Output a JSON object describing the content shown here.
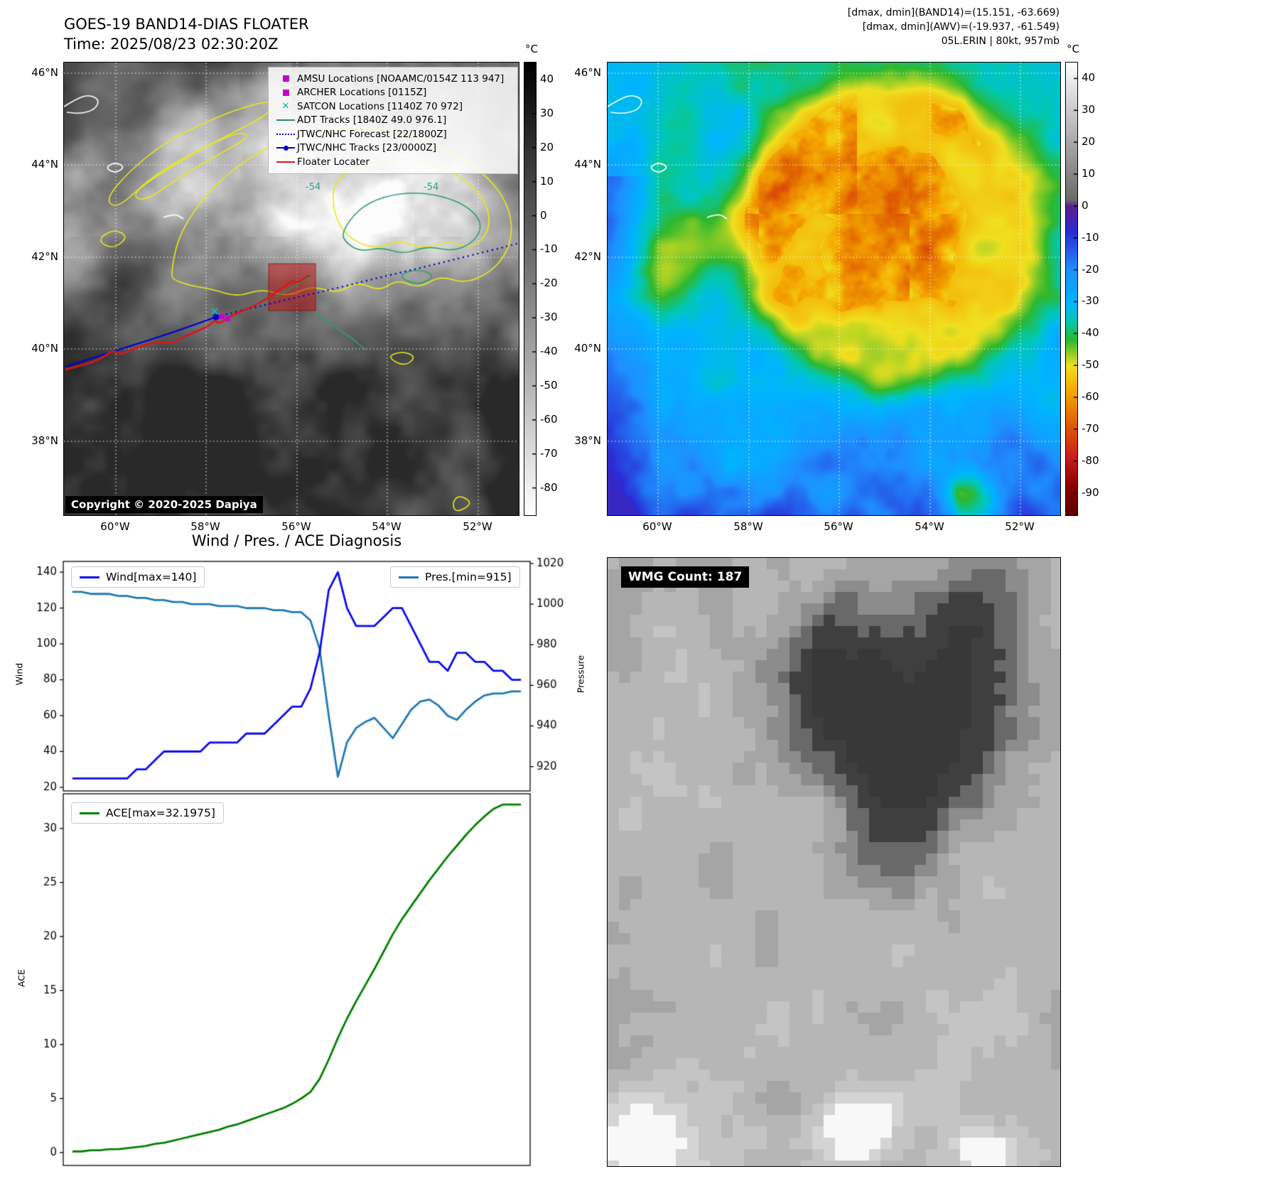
{
  "panel1": {
    "title": "GOES-19 BAND14-DIAS FLOATER",
    "time": "Time: 2025/08/23 02:30:20Z",
    "copyright": "Copyright © 2020-2025 Dapiya",
    "colorbar_unit": "°C",
    "colorbar_ticks": [
      40,
      30,
      20,
      10,
      0,
      -10,
      -20,
      -30,
      -40,
      -50,
      -60,
      -70,
      -80
    ],
    "lat_ticks": [
      "46°N",
      "44°N",
      "42°N",
      "40°N",
      "38°N"
    ],
    "lon_ticks": [
      "60°W",
      "58°W",
      "56°W",
      "54°W",
      "52°W"
    ],
    "contour_labels": [
      "-54",
      "-54"
    ],
    "legend_items": [
      {
        "label": "AMSU Locations [NOAAMC/0154Z 113 947]",
        "marker": "square",
        "color": "#c800c8"
      },
      {
        "label": "ARCHER Locations [0115Z]",
        "marker": "square",
        "color": "#c800c8"
      },
      {
        "label": "SATCON Locations [1140Z 70 972]",
        "marker": "x",
        "color": "#20b2aa"
      },
      {
        "label": "ADT Tracks [1840Z 49.0 976.1]",
        "marker": "line",
        "color": "#2e8b57"
      },
      {
        "label": "JTWC/NHC Forecast [22/1800Z]",
        "marker": "dotted",
        "color": "#0000cd"
      },
      {
        "label": "JTWC/NHC Tracks [23/0000Z]",
        "marker": "line-dot",
        "color": "#0000cd"
      },
      {
        "label": "Floater Locater",
        "marker": "line",
        "color": "#e01515"
      }
    ]
  },
  "panel2": {
    "header_lines": [
      "[dmax, dmin](BAND14)=(15.151, -63.669)",
      "[dmax, dmin](AWV)=(-19.937, -61.549)",
      "05L.ERIN | 80kt, 957mb"
    ],
    "colorbar_unit": "°C",
    "colorbar_ticks": [
      40,
      30,
      20,
      10,
      0,
      -10,
      -20,
      -30,
      -40,
      -50,
      -60,
      -70,
      -80,
      -90
    ],
    "lat_ticks": [
      "46°N",
      "44°N",
      "42°N",
      "40°N",
      "38°N"
    ],
    "lon_ticks": [
      "60°W",
      "58°W",
      "56°W",
      "54°W",
      "52°W"
    ]
  },
  "panel3": {
    "title": "Wind / Pres. / ACE Diagnosis",
    "legend_wind": "Wind[max=140]",
    "legend_pres": "Pres.[min=915]",
    "legend_ace": "ACE[max=32.1975]",
    "ylabel_wind": "Wind",
    "ylabel_pressure": "Pressure",
    "ylabel_ace": "ACE"
  },
  "panel4": {
    "label": "WMG Count: 187"
  },
  "colors": {
    "wind_line": "#0b0bee",
    "pressure_line": "#2079b4",
    "ace_line": "#008000",
    "track_red": "#e01515",
    "track_blue": "#0000cd",
    "adt_green": "#2e8b57",
    "amsu_magenta": "#c800c8",
    "satcon_teal": "#20b2aa"
  },
  "chart_data": [
    {
      "type": "line",
      "title": "Wind / Pres. / ACE Diagnosis",
      "x_axis": "time steps (unlabeled)",
      "x_count": 50,
      "series": [
        {
          "name": "Wind[max=140]",
          "yaxis": "left",
          "color": "#0b0bee",
          "values": [
            25,
            25,
            25,
            25,
            25,
            25,
            25,
            30,
            30,
            35,
            40,
            40,
            40,
            40,
            40,
            45,
            45,
            45,
            45,
            50,
            50,
            50,
            55,
            60,
            65,
            65,
            75,
            95,
            130,
            140,
            120,
            110,
            110,
            110,
            115,
            120,
            120,
            110,
            100,
            90,
            90,
            85,
            95,
            95,
            90,
            90,
            85,
            85,
            80,
            80
          ]
        },
        {
          "name": "Pres.[min=915]",
          "yaxis": "right",
          "color": "#2079b4",
          "values": [
            1006,
            1006,
            1005,
            1005,
            1005,
            1004,
            1004,
            1003,
            1003,
            1002,
            1002,
            1001,
            1001,
            1000,
            1000,
            1000,
            999,
            999,
            999,
            998,
            998,
            998,
            997,
            997,
            996,
            996,
            992,
            978,
            945,
            915,
            932,
            939,
            942,
            944,
            939,
            934,
            941,
            948,
            952,
            953,
            950,
            945,
            943,
            948,
            952,
            955,
            956,
            956,
            957,
            957
          ]
        }
      ],
      "ylabel_left": "Wind",
      "ylabel_right": "Pressure",
      "yticks_left": [
        20,
        40,
        60,
        80,
        100,
        120,
        140
      ],
      "yticks_right": [
        920,
        940,
        960,
        980,
        1000,
        1020
      ],
      "ylim_left": [
        18,
        146
      ],
      "ylim_right": [
        908,
        1021
      ],
      "wind_max": 140,
      "pressure_min": 915,
      "legend_position": [
        "upper left",
        "upper right"
      ],
      "grid": false
    },
    {
      "type": "line",
      "x_axis": "time steps (unlabeled)",
      "x_count": 50,
      "series": [
        {
          "name": "ACE[max=32.1975]",
          "color": "#008000",
          "values": [
            0.1,
            0.1,
            0.2,
            0.2,
            0.3,
            0.3,
            0.4,
            0.5,
            0.6,
            0.8,
            0.9,
            1.1,
            1.3,
            1.5,
            1.7,
            1.9,
            2.1,
            2.4,
            2.6,
            2.9,
            3.2,
            3.5,
            3.8,
            4.1,
            4.5,
            5.0,
            5.6,
            6.8,
            8.6,
            10.6,
            12.4,
            14.0,
            15.5,
            17.0,
            18.6,
            20.2,
            21.6,
            22.8,
            24.0,
            25.2,
            26.3,
            27.4,
            28.4,
            29.4,
            30.3,
            31.1,
            31.8,
            32.2,
            32.2,
            32.2
          ]
        }
      ],
      "ylabel": "ACE",
      "yticks": [
        0,
        5,
        10,
        15,
        20,
        25,
        30
      ],
      "ylim": [
        -1.2,
        33.2
      ],
      "ace_max": 32.1975,
      "legend_position": "upper left",
      "grid": false
    }
  ]
}
